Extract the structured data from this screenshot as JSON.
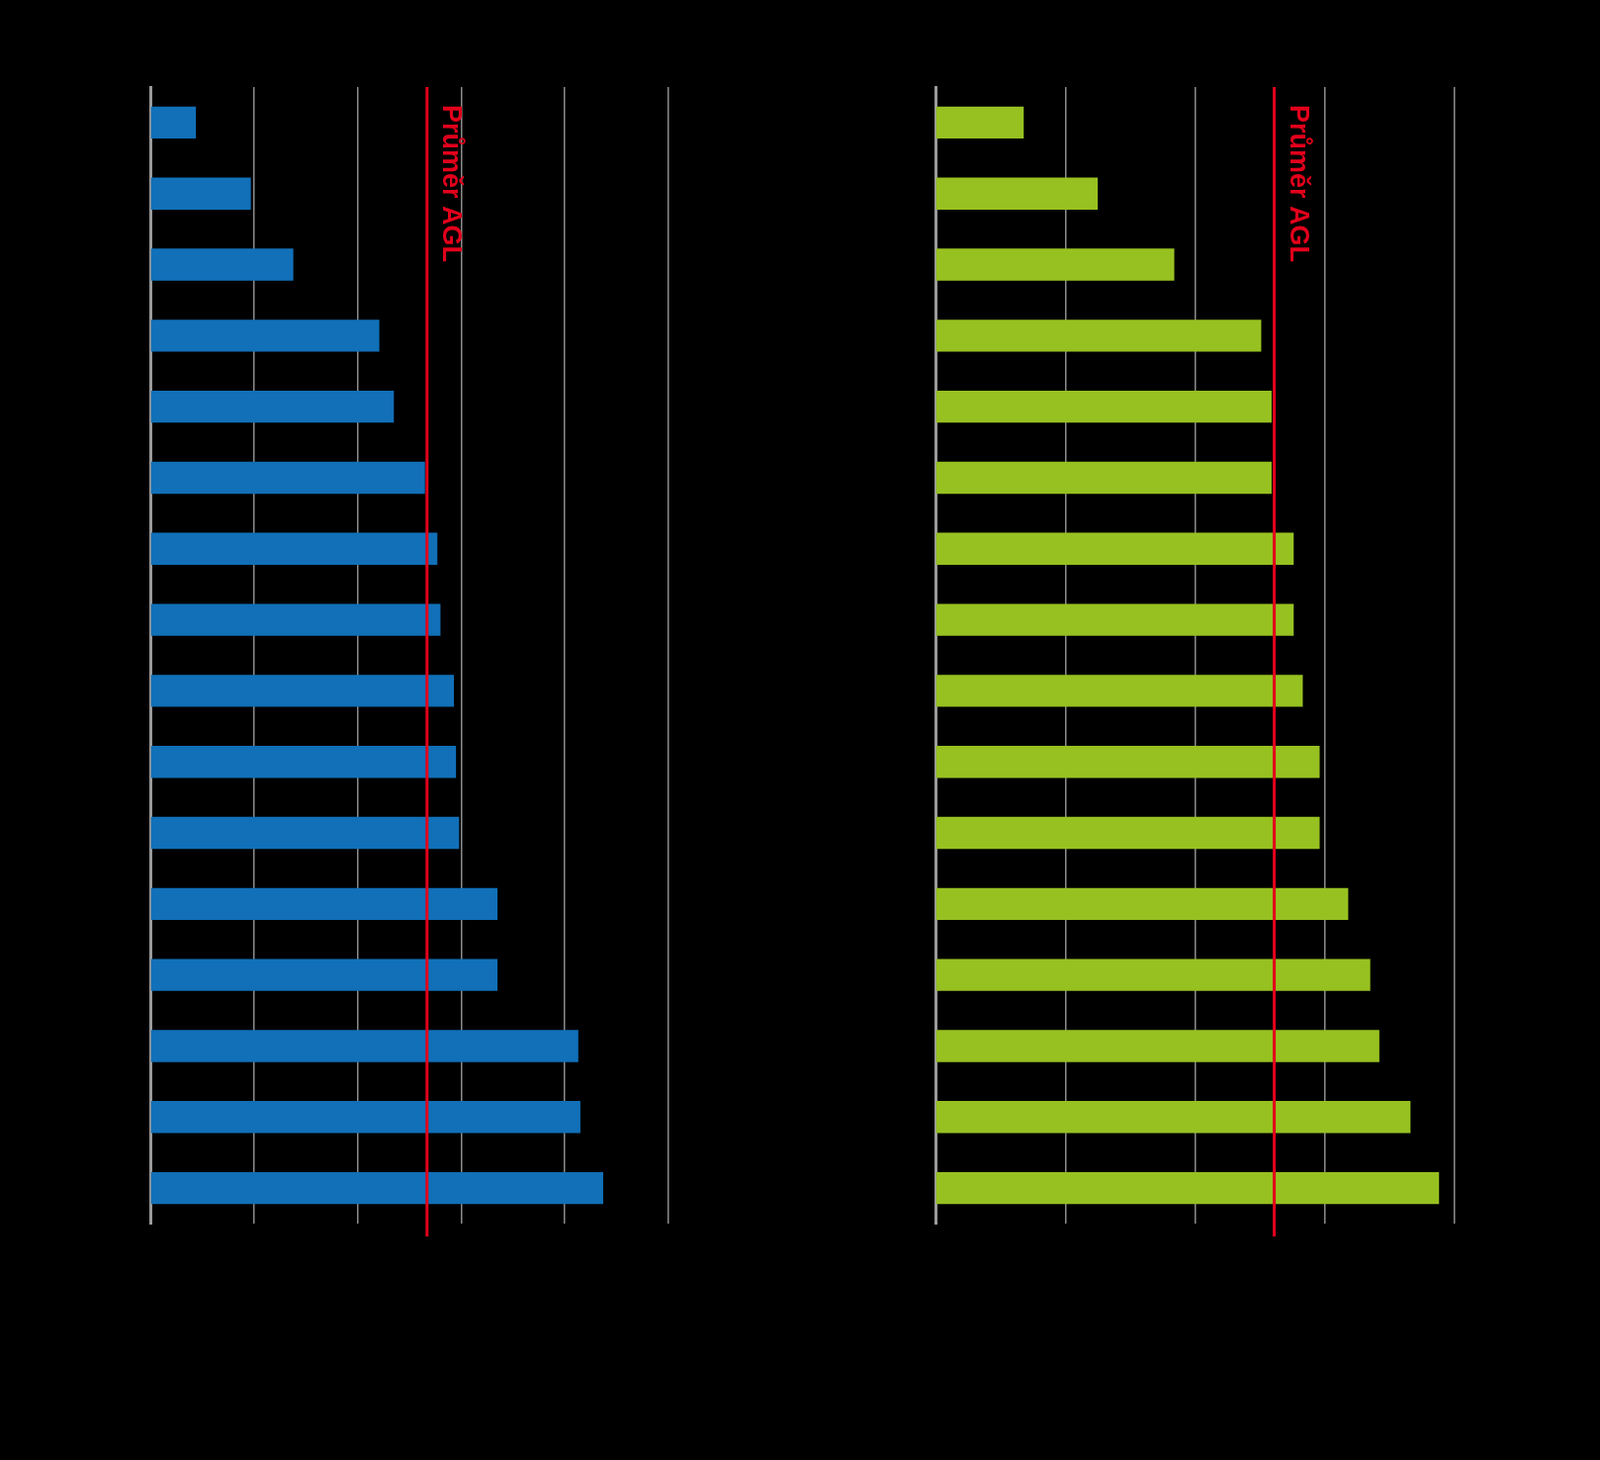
{
  "chart_data": [
    {
      "type": "bar",
      "orientation": "horizontal",
      "categories": [
        null,
        null,
        null,
        null,
        null,
        null,
        null,
        null,
        null,
        null,
        null,
        null,
        null,
        null,
        null,
        null
      ],
      "values": [
        4.4,
        9.7,
        13.8,
        22.1,
        23.5,
        26.5,
        27.7,
        28.0,
        29.3,
        29.5,
        29.8,
        33.5,
        33.5,
        41.3,
        41.5,
        43.7
      ],
      "color": "#1170b8",
      "xlim": [
        0,
        50
      ],
      "xticks": [
        0,
        10,
        20,
        30,
        40,
        50
      ],
      "grid": true,
      "tick_labels": false,
      "annotations": [
        {
          "x": 26.7,
          "label": "Průměr AGL",
          "color": "#e3001b"
        }
      ]
    },
    {
      "type": "bar",
      "orientation": "horizontal",
      "categories": [
        null,
        null,
        null,
        null,
        null,
        null,
        null,
        null,
        null,
        null,
        null,
        null,
        null,
        null,
        null,
        null
      ],
      "values": [
        6.8,
        12.5,
        18.4,
        25.1,
        25.9,
        25.9,
        27.6,
        27.6,
        28.3,
        29.6,
        29.6,
        31.8,
        33.5,
        34.2,
        36.6,
        38.8
      ],
      "color": "#97c121",
      "xlim": [
        0,
        40
      ],
      "xticks": [
        0,
        10,
        20,
        30,
        40
      ],
      "grid": true,
      "tick_labels": false,
      "annotations": [
        {
          "x": 26.1,
          "label": "Průměr AGL",
          "color": "#e3001b"
        }
      ]
    }
  ]
}
